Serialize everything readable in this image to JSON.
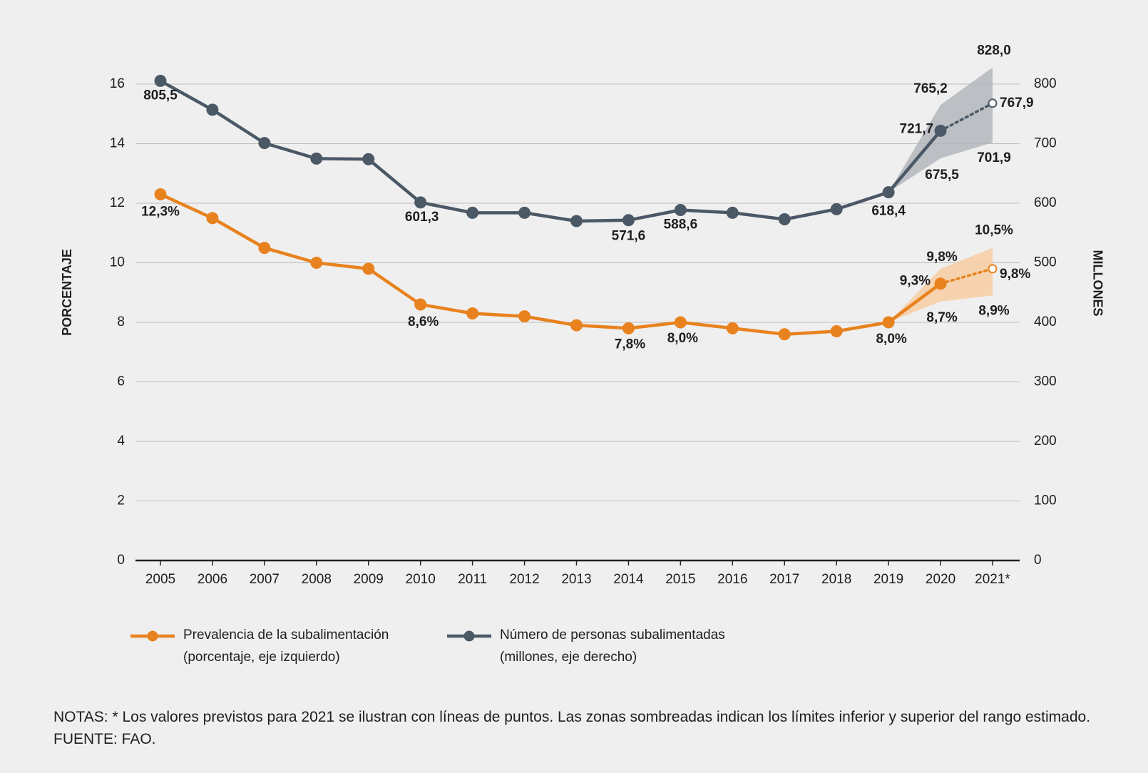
{
  "chart_data": {
    "type": "line",
    "categories": [
      "2005",
      "2006",
      "2007",
      "2008",
      "2009",
      "2010",
      "2011",
      "2012",
      "2013",
      "2014",
      "2015",
      "2016",
      "2017",
      "2018",
      "2019",
      "2020",
      "2021*"
    ],
    "ylabel": "PORCENTAJE",
    "y2label": "MILLONES",
    "ylim": [
      0,
      16
    ],
    "yticks": [
      0,
      2,
      4,
      6,
      8,
      10,
      12,
      14,
      16
    ],
    "y2lim": [
      0,
      800
    ],
    "y2ticks": [
      0,
      100,
      200,
      300,
      400,
      500,
      600,
      700,
      800
    ],
    "grid": true,
    "series": [
      {
        "name": "Prevalencia de la subalimentación",
        "name_note": "(porcentaje, eje izquierdo)",
        "color": "#e8821e",
        "band_color": "#f7cda2",
        "axis": "y",
        "values": [
          12.3,
          11.5,
          10.5,
          10.0,
          9.8,
          8.6,
          8.3,
          8.2,
          7.9,
          7.8,
          8.0,
          7.8,
          7.6,
          7.7,
          8.0,
          9.3,
          9.8
        ],
        "value_labels": [
          "12,3%",
          null,
          null,
          null,
          null,
          "8,6%",
          null,
          null,
          null,
          "7,8%",
          "8,0%",
          null,
          null,
          null,
          "8,0%",
          "9,3%",
          "9,8%"
        ],
        "dotted": [
          false,
          false,
          false,
          false,
          false,
          false,
          false,
          false,
          false,
          false,
          false,
          false,
          false,
          false,
          false,
          false,
          true
        ],
        "lower": [
          null,
          null,
          null,
          null,
          null,
          null,
          null,
          null,
          null,
          null,
          null,
          null,
          null,
          null,
          8.0,
          8.7,
          8.9
        ],
        "lower_labels": [
          null,
          null,
          null,
          null,
          null,
          null,
          null,
          null,
          null,
          null,
          null,
          null,
          null,
          null,
          null,
          "8,7%",
          "8,9%"
        ],
        "upper": [
          null,
          null,
          null,
          null,
          null,
          null,
          null,
          null,
          null,
          null,
          null,
          null,
          null,
          null,
          8.0,
          9.8,
          10.5
        ],
        "upper_labels": [
          null,
          null,
          null,
          null,
          null,
          null,
          null,
          null,
          null,
          null,
          null,
          null,
          null,
          null,
          null,
          "9,8%",
          "10,5%"
        ]
      },
      {
        "name": "Número de personas subalimentadas",
        "name_note": "(millones, eje derecho)",
        "color": "#4b5866",
        "band_color": "#b3b6bb",
        "axis": "y2",
        "values": [
          805.5,
          757,
          701,
          675,
          674,
          601.3,
          584,
          584,
          570,
          571.6,
          588.6,
          584,
          573,
          590,
          618.4,
          721.7,
          767.9
        ],
        "value_labels": [
          "805,5",
          null,
          null,
          null,
          null,
          "601,3",
          null,
          null,
          null,
          "571,6",
          "588,6",
          null,
          null,
          null,
          "618,4",
          "721,7",
          "767,9"
        ],
        "dotted": [
          false,
          false,
          false,
          false,
          false,
          false,
          false,
          false,
          false,
          false,
          false,
          false,
          false,
          false,
          false,
          false,
          true
        ],
        "lower": [
          null,
          null,
          null,
          null,
          null,
          null,
          null,
          null,
          null,
          null,
          null,
          null,
          null,
          null,
          618.4,
          675.5,
          701.9
        ],
        "lower_labels": [
          null,
          null,
          null,
          null,
          null,
          null,
          null,
          null,
          null,
          null,
          null,
          null,
          null,
          null,
          null,
          "675,5",
          "701,9"
        ],
        "upper": [
          null,
          null,
          null,
          null,
          null,
          null,
          null,
          null,
          null,
          null,
          null,
          null,
          null,
          null,
          618.4,
          765.2,
          828.0
        ],
        "upper_labels": [
          null,
          null,
          null,
          null,
          null,
          null,
          null,
          null,
          null,
          null,
          null,
          null,
          null,
          null,
          null,
          "765,2",
          "828,0"
        ]
      }
    ],
    "notes": "NOTAS: * Los valores previstos para 2021 se ilustran con líneas de puntos. Las zonas sombreadas indican los límites inferior y superior del rango estimado.",
    "source": "FUENTE: FAO."
  }
}
